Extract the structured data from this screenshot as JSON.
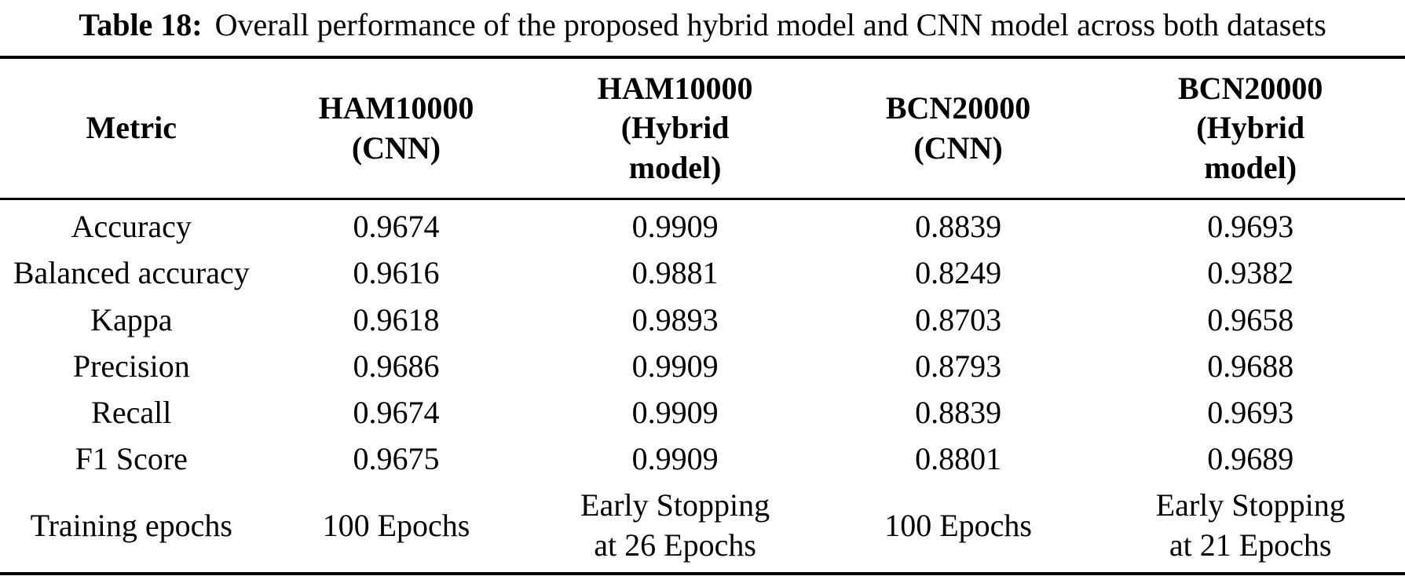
{
  "title": {
    "label": "Table 18:",
    "text": "Overall performance of the proposed hybrid model and CNN model across both datasets"
  },
  "table": {
    "columns": [
      {
        "header": "Metric"
      },
      {
        "header": "HAM10000\n(CNN)"
      },
      {
        "header": "HAM10000\n(Hybrid\nmodel)"
      },
      {
        "header": "BCN20000\n(CNN)"
      },
      {
        "header": "BCN20000\n(Hybrid\nmodel)"
      }
    ],
    "rows": [
      {
        "metric": "Accuracy",
        "values": [
          "0.9674",
          "0.9909",
          "0.8839",
          "0.9693"
        ]
      },
      {
        "metric": "Balanced accuracy",
        "values": [
          "0.9616",
          "0.9881",
          "0.8249",
          "0.9382"
        ]
      },
      {
        "metric": "Kappa",
        "values": [
          "0.9618",
          "0.9893",
          "0.8703",
          "0.9658"
        ]
      },
      {
        "metric": "Precision",
        "values": [
          "0.9686",
          "0.9909",
          "0.8793",
          "0.9688"
        ]
      },
      {
        "metric": "Recall",
        "values": [
          "0.9674",
          "0.9909",
          "0.8839",
          "0.9693"
        ]
      },
      {
        "metric": "F1 Score",
        "values": [
          "0.9675",
          "0.9909",
          "0.8801",
          "0.9689"
        ]
      },
      {
        "metric": "Training epochs",
        "values": [
          "100 Epochs",
          "Early Stopping\nat 26 Epochs",
          "100 Epochs",
          "Early Stopping\nat 21 Epochs"
        ]
      }
    ]
  },
  "colors": {
    "text": "#000000",
    "background": "#ffffff",
    "rule": "#000000"
  }
}
